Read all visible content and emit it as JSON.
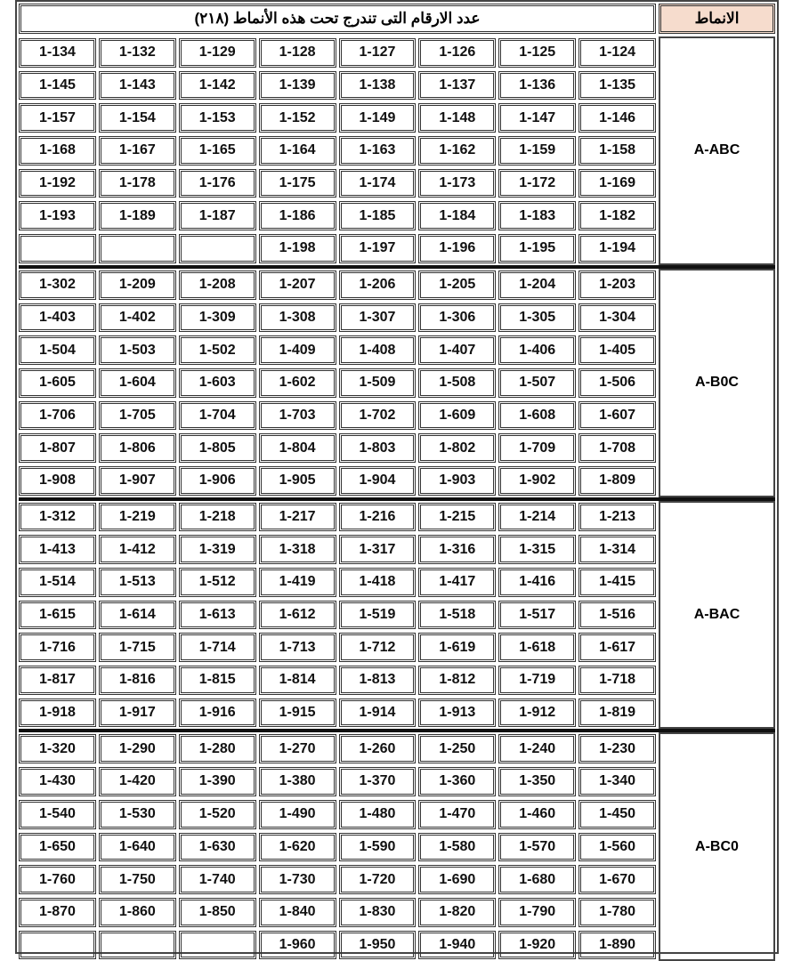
{
  "header": {
    "title": "عدد الارقام التى تندرج تحت هذه الأنماط  (٢١٨)",
    "label": "الانماط"
  },
  "groups": [
    {
      "label": "A-ABC",
      "rows": [
        [
          "1-134",
          "1-132",
          "1-129",
          "1-128",
          "1-127",
          "1-126",
          "1-125",
          "1-124"
        ],
        [
          "1-145",
          "1-143",
          "1-142",
          "1-139",
          "1-138",
          "1-137",
          "1-136",
          "1-135"
        ],
        [
          "1-157",
          "1-154",
          "1-153",
          "1-152",
          "1-149",
          "1-148",
          "1-147",
          "1-146"
        ],
        [
          "1-168",
          "1-167",
          "1-165",
          "1-164",
          "1-163",
          "1-162",
          "1-159",
          "1-158"
        ],
        [
          "1-192",
          "1-178",
          "1-176",
          "1-175",
          "1-174",
          "1-173",
          "1-172",
          "1-169"
        ],
        [
          "1-193",
          "1-189",
          "1-187",
          "1-186",
          "1-185",
          "1-184",
          "1-183",
          "1-182"
        ],
        [
          "",
          "",
          "",
          "1-198",
          "1-197",
          "1-196",
          "1-195",
          "1-194"
        ]
      ]
    },
    {
      "label": "A-B0C",
      "rows": [
        [
          "1-302",
          "1-209",
          "1-208",
          "1-207",
          "1-206",
          "1-205",
          "1-204",
          "1-203"
        ],
        [
          "1-403",
          "1-402",
          "1-309",
          "1-308",
          "1-307",
          "1-306",
          "1-305",
          "1-304"
        ],
        [
          "1-504",
          "1-503",
          "1-502",
          "1-409",
          "1-408",
          "1-407",
          "1-406",
          "1-405"
        ],
        [
          "1-605",
          "1-604",
          "1-603",
          "1-602",
          "1-509",
          "1-508",
          "1-507",
          "1-506"
        ],
        [
          "1-706",
          "1-705",
          "1-704",
          "1-703",
          "1-702",
          "1-609",
          "1-608",
          "1-607"
        ],
        [
          "1-807",
          "1-806",
          "1-805",
          "1-804",
          "1-803",
          "1-802",
          "1-709",
          "1-708"
        ],
        [
          "1-908",
          "1-907",
          "1-906",
          "1-905",
          "1-904",
          "1-903",
          "1-902",
          "1-809"
        ]
      ]
    },
    {
      "label": "A-BAC",
      "rows": [
        [
          "1-312",
          "1-219",
          "1-218",
          "1-217",
          "1-216",
          "1-215",
          "1-214",
          "1-213"
        ],
        [
          "1-413",
          "1-412",
          "1-319",
          "1-318",
          "1-317",
          "1-316",
          "1-315",
          "1-314"
        ],
        [
          "1-514",
          "1-513",
          "1-512",
          "1-419",
          "1-418",
          "1-417",
          "1-416",
          "1-415"
        ],
        [
          "1-615",
          "1-614",
          "1-613",
          "1-612",
          "1-519",
          "1-518",
          "1-517",
          "1-516"
        ],
        [
          "1-716",
          "1-715",
          "1-714",
          "1-713",
          "1-712",
          "1-619",
          "1-618",
          "1-617"
        ],
        [
          "1-817",
          "1-816",
          "1-815",
          "1-814",
          "1-813",
          "1-812",
          "1-719",
          "1-718"
        ],
        [
          "1-918",
          "1-917",
          "1-916",
          "1-915",
          "1-914",
          "1-913",
          "1-912",
          "1-819"
        ]
      ]
    },
    {
      "label": "A-BC0",
      "rows": [
        [
          "1-320",
          "1-290",
          "1-280",
          "1-270",
          "1-260",
          "1-250",
          "1-240",
          "1-230"
        ],
        [
          "1-430",
          "1-420",
          "1-390",
          "1-380",
          "1-370",
          "1-360",
          "1-350",
          "1-340"
        ],
        [
          "1-540",
          "1-530",
          "1-520",
          "1-490",
          "1-480",
          "1-470",
          "1-460",
          "1-450"
        ],
        [
          "1-650",
          "1-640",
          "1-630",
          "1-620",
          "1-590",
          "1-580",
          "1-570",
          "1-560"
        ],
        [
          "1-760",
          "1-750",
          "1-740",
          "1-730",
          "1-720",
          "1-690",
          "1-680",
          "1-670"
        ],
        [
          "1-870",
          "1-860",
          "1-850",
          "1-840",
          "1-830",
          "1-820",
          "1-790",
          "1-780"
        ],
        [
          "",
          "",
          "",
          "1-960",
          "1-950",
          "1-940",
          "1-920",
          "1-890"
        ]
      ]
    }
  ]
}
